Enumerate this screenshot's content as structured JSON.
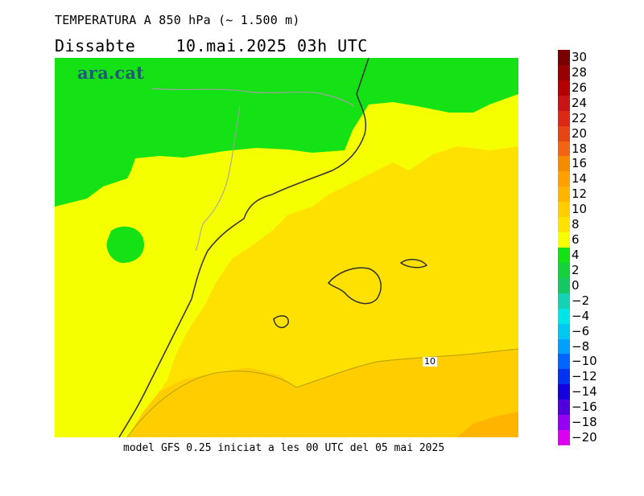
{
  "header": {
    "title": "TEMPERATURA A 850 hPa (~ 1.500 m)",
    "day": "Dissabte",
    "date_time": "10.mai.2025 03h UTC"
  },
  "logo": {
    "text": "ara.cat"
  },
  "footer": {
    "text": "model GFS 0.25 iniciat a les 00 UTC del 05 mai 2025"
  },
  "map": {
    "contour_label": "10",
    "colors": {
      "band_4_6": "#14e214",
      "band_6_8": "#f5ff00",
      "band_8_10": "#ffe100",
      "band_10_12": "#ffcd00",
      "band_12_14": "#ffb400",
      "coast": "#303030",
      "border": "#a0a0a0"
    }
  },
  "legend": {
    "labels": [
      "30",
      "28",
      "26",
      "24",
      "22",
      "20",
      "18",
      "16",
      "14",
      "12",
      "10",
      "8",
      "6",
      "4",
      "2",
      "0",
      "−2",
      "−4",
      "−6",
      "−8",
      "−10",
      "−12",
      "−14",
      "−16",
      "−18",
      "−20"
    ],
    "colors": [
      "#7a0000",
      "#960000",
      "#b40000",
      "#c81414",
      "#dc2814",
      "#e64614",
      "#f06414",
      "#f58c00",
      "#ffa000",
      "#ffb400",
      "#ffcd00",
      "#ffe100",
      "#f5ff00",
      "#14e214",
      "#14d23c",
      "#14c864",
      "#14d2b4",
      "#00e6e6",
      "#00c8f0",
      "#00a0ff",
      "#0064ff",
      "#0032f0",
      "#1400dc",
      "#5000dc",
      "#9600f0",
      "#dc00f0"
    ]
  }
}
